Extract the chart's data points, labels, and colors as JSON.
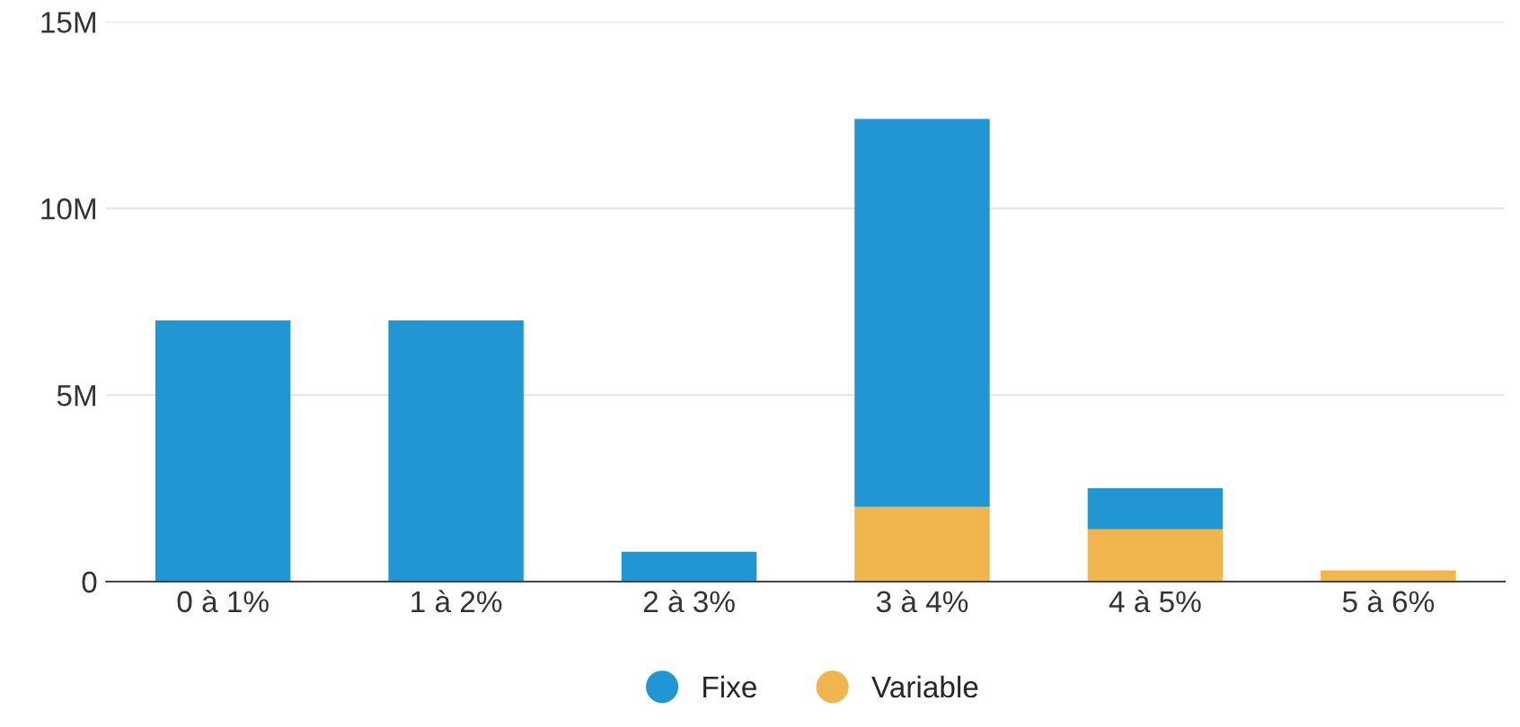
{
  "chart_data": {
    "type": "bar",
    "stacked": true,
    "categories": [
      "0 à 1%",
      "1 à 2%",
      "2 à 3%",
      "3 à 4%",
      "4 à 5%",
      "5 à 6%"
    ],
    "series": [
      {
        "name": "Variable",
        "color": "#f0b64d",
        "values": [
          0,
          0,
          0,
          2.0,
          1.4,
          0.3
        ]
      },
      {
        "name": "Fixe",
        "color": "#2196d3",
        "values": [
          7.0,
          7.0,
          0.8,
          10.4,
          1.1,
          0
        ]
      }
    ],
    "ylim": [
      0,
      15
    ],
    "yticks": [
      {
        "value": 0,
        "label": "0"
      },
      {
        "value": 5,
        "label": "5M"
      },
      {
        "value": 10,
        "label": "10M"
      },
      {
        "value": 15,
        "label": "15M"
      }
    ],
    "grid": "y",
    "legend": "bottom"
  }
}
